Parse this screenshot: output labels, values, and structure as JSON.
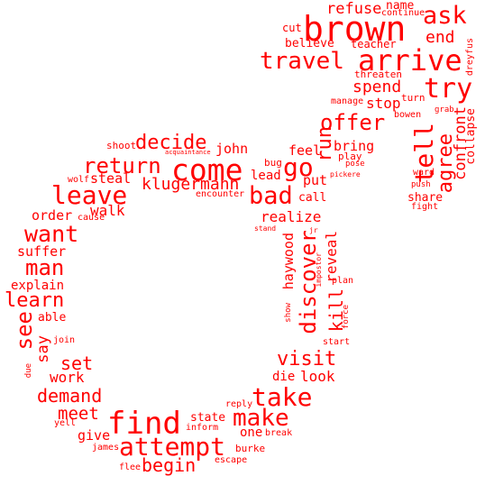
{
  "cloud": {
    "color": "#ff0000",
    "background": "#ffffff",
    "words": [
      "brown",
      "arrive",
      "ask",
      "refuse",
      "name",
      "continue",
      "cut",
      "end",
      "believe",
      "teacher",
      "travel",
      "try",
      "threaten",
      "dreyfus",
      "spend",
      "manage",
      "turn",
      "stop",
      "offer",
      "bowen",
      "grab",
      "run",
      "tell",
      "agree",
      "confront",
      "collapse",
      "decide",
      "john",
      "shoot",
      "acquaintance",
      "come",
      "go",
      "bring",
      "play",
      "feel",
      "pose",
      "return",
      "bug",
      "pickere",
      "ward",
      "leave",
      "wolf",
      "steal",
      "klugermann",
      "encounter",
      "lead",
      "bad",
      "put",
      "push",
      "call",
      "share",
      "fight",
      "walk",
      "order",
      "cause",
      "realize",
      "want",
      "stand",
      "jr",
      "haywood",
      "reveal",
      "suffer",
      "discover",
      "impostor",
      "man",
      "explain",
      "plan",
      "learn",
      "kill",
      "see",
      "able",
      "force",
      "show",
      "say",
      "join",
      "start",
      "set",
      "due",
      "visit",
      "work",
      "look",
      "die",
      "demand",
      "take",
      "meet",
      "reply",
      "make",
      "state",
      "find",
      "yell",
      "inform",
      "one",
      "break",
      "give",
      "attempt",
      "james",
      "burke",
      "begin",
      "flee",
      "escape"
    ]
  }
}
